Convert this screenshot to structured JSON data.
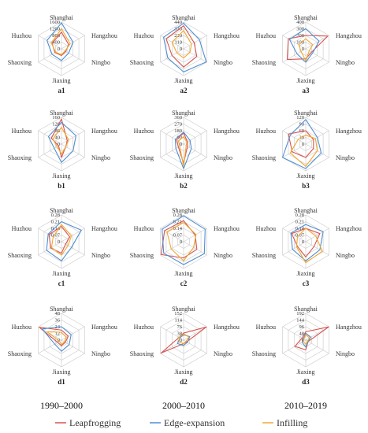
{
  "axes": [
    "Shanghai",
    "Hangzhou",
    "Ningbo",
    "Jiaxing",
    "Shaoxing",
    "Huzhou"
  ],
  "periods": [
    "1990–2000",
    "2000–2010",
    "2010–2019"
  ],
  "colors": {
    "Leapfrogging": "#d9534f",
    "Edge-expansion": "#4f8fd0",
    "Infilling": "#f0a830"
  },
  "legend": [
    {
      "name": "Leapfrogging",
      "color": "#d9534f"
    },
    {
      "name": "Edge-expansion",
      "color": "#4f8fd0"
    },
    {
      "name": "Infilling",
      "color": "#f0a830"
    }
  ],
  "chart_data": [
    {
      "type": "radar",
      "panel": "a1",
      "ticks": [
        "0",
        "400",
        "800",
        "1200",
        "1600"
      ],
      "max": 1600,
      "axes": [
        "Shanghai",
        "Hangzhou",
        "Ningbo",
        "Jiaxing",
        "Shaoxing",
        "Huzhou"
      ],
      "series": [
        {
          "name": "Leapfrogging",
          "values": [
            1000,
            500,
            300,
            400,
            450,
            650
          ]
        },
        {
          "name": "Edge-expansion",
          "values": [
            1550,
            800,
            500,
            700,
            650,
            1000
          ]
        },
        {
          "name": "Infilling",
          "values": [
            1200,
            600,
            250,
            350,
            400,
            700
          ]
        }
      ]
    },
    {
      "type": "radar",
      "panel": "a2",
      "ticks": [
        "0",
        "110",
        "220",
        "330",
        "440"
      ],
      "max": 440,
      "axes": [
        "Shanghai",
        "Hangzhou",
        "Ningbo",
        "Jiaxing",
        "Shaoxing",
        "Huzhou"
      ],
      "series": [
        {
          "name": "Leapfrogging",
          "values": [
            380,
            200,
            250,
            300,
            220,
            330
          ]
        },
        {
          "name": "Edge-expansion",
          "values": [
            420,
            300,
            430,
            380,
            300,
            380
          ]
        },
        {
          "name": "Infilling",
          "values": [
            300,
            150,
            120,
            150,
            130,
            220
          ]
        }
      ]
    },
    {
      "type": "radar",
      "panel": "a3",
      "ticks": [
        "0",
        "100",
        "200",
        "300",
        "400"
      ],
      "max": 400,
      "axes": [
        "Shanghai",
        "Hangzhou",
        "Ningbo",
        "Jiaxing",
        "Shaoxing",
        "Huzhou"
      ],
      "series": [
        {
          "name": "Leapfrogging",
          "values": [
            200,
            380,
            100,
            150,
            320,
            300
          ]
        },
        {
          "name": "Edge-expansion",
          "values": [
            300,
            230,
            120,
            200,
            150,
            280
          ]
        },
        {
          "name": "Infilling",
          "values": [
            150,
            120,
            60,
            180,
            80,
            120
          ]
        }
      ]
    },
    {
      "type": "radar",
      "panel": "b1",
      "ticks": [
        "0",
        "40",
        "80",
        "120",
        "160"
      ],
      "max": 160,
      "axes": [
        "Shanghai",
        "Hangzhou",
        "Ningbo",
        "Jiaxing",
        "Shaoxing",
        "Huzhou"
      ],
      "series": [
        {
          "name": "Leapfrogging",
          "values": [
            150,
            40,
            30,
            80,
            20,
            70
          ]
        },
        {
          "name": "Edge-expansion",
          "values": [
            130,
            100,
            80,
            110,
            50,
            90
          ]
        },
        {
          "name": "Infilling",
          "values": [
            100,
            50,
            30,
            60,
            30,
            60
          ]
        }
      ]
    },
    {
      "type": "radar",
      "panel": "b2",
      "ticks": [
        "0",
        "90",
        "180",
        "270",
        "360"
      ],
      "max": 360,
      "axes": [
        "Shanghai",
        "Hangzhou",
        "Ningbo",
        "Jiaxing",
        "Shaoxing",
        "Huzhou"
      ],
      "series": [
        {
          "name": "Leapfrogging",
          "values": [
            150,
            60,
            60,
            260,
            80,
            110
          ]
        },
        {
          "name": "Edge-expansion",
          "values": [
            160,
            100,
            120,
            330,
            120,
            130
          ]
        },
        {
          "name": "Infilling",
          "values": [
            100,
            50,
            40,
            300,
            60,
            80
          ]
        }
      ]
    },
    {
      "type": "radar",
      "panel": "b3",
      "ticks": [
        "0",
        "30",
        "60",
        "90",
        "120"
      ],
      "max": 120,
      "axes": [
        "Shanghai",
        "Hangzhou",
        "Ningbo",
        "Jiaxing",
        "Shaoxing",
        "Huzhou"
      ],
      "series": [
        {
          "name": "Leapfrogging",
          "values": [
            60,
            40,
            40,
            60,
            70,
            90
          ]
        },
        {
          "name": "Edge-expansion",
          "values": [
            110,
            60,
            80,
            110,
            120,
            80
          ]
        },
        {
          "name": "Infilling",
          "values": [
            40,
            50,
            60,
            100,
            80,
            40
          ]
        }
      ]
    },
    {
      "type": "radar",
      "panel": "c1",
      "ticks": [
        "0",
        "0.07",
        "0.14",
        "0.21",
        "0.28"
      ],
      "max": 0.28,
      "axes": [
        "Shanghai",
        "Hangzhou",
        "Ningbo",
        "Jiaxing",
        "Shaoxing",
        "Huzhou"
      ],
      "series": [
        {
          "name": "Leapfrogging",
          "values": [
            0.16,
            0.1,
            0.05,
            0.12,
            0.13,
            0.15
          ]
        },
        {
          "name": "Edge-expansion",
          "values": [
            0.21,
            0.24,
            0.12,
            0.2,
            0.18,
            0.16
          ]
        },
        {
          "name": "Infilling",
          "values": [
            0.18,
            0.12,
            0.08,
            0.14,
            0.12,
            0.1
          ]
        }
      ]
    },
    {
      "type": "radar",
      "panel": "c2",
      "ticks": [
        "0",
        "0.07",
        "0.14",
        "0.21",
        "0.28"
      ],
      "max": 0.28,
      "axes": [
        "Shanghai",
        "Hangzhou",
        "Ningbo",
        "Jiaxing",
        "Shaoxing",
        "Huzhou"
      ],
      "series": [
        {
          "name": "Leapfrogging",
          "values": [
            0.22,
            0.14,
            0.16,
            0.17,
            0.27,
            0.23
          ]
        },
        {
          "name": "Edge-expansion",
          "values": [
            0.27,
            0.26,
            0.25,
            0.24,
            0.24,
            0.26
          ]
        },
        {
          "name": "Infilling",
          "values": [
            0.2,
            0.15,
            0.12,
            0.2,
            0.15,
            0.2
          ]
        }
      ]
    },
    {
      "type": "radar",
      "panel": "c3",
      "ticks": [
        "0",
        "0.07",
        "0.14",
        "0.21",
        "0.28"
      ],
      "max": 0.28,
      "axes": [
        "Shanghai",
        "Hangzhou",
        "Ningbo",
        "Jiaxing",
        "Shaoxing",
        "Huzhou"
      ],
      "series": [
        {
          "name": "Leapfrogging",
          "values": [
            0.14,
            0.17,
            0.1,
            0.16,
            0.1,
            0.17
          ]
        },
        {
          "name": "Edge-expansion",
          "values": [
            0.18,
            0.21,
            0.17,
            0.2,
            0.16,
            0.18
          ]
        },
        {
          "name": "Infilling",
          "values": [
            0.14,
            0.12,
            0.2,
            0.22,
            0.11,
            0.1
          ]
        }
      ]
    },
    {
      "type": "radar",
      "panel": "d1",
      "ticks": [
        "0",
        "12",
        "24",
        "36",
        "48"
      ],
      "max": 48,
      "axes": [
        "Shanghai",
        "Hangzhou",
        "Ningbo",
        "Jiaxing",
        "Shaoxing",
        "Huzhou"
      ],
      "series": [
        {
          "name": "Leapfrogging",
          "values": [
            18,
            14,
            8,
            10,
            8,
            46
          ]
        },
        {
          "name": "Edge-expansion",
          "values": [
            24,
            20,
            16,
            20,
            14,
            40
          ]
        },
        {
          "name": "Infilling",
          "values": [
            14,
            10,
            6,
            8,
            4,
            30
          ]
        }
      ]
    },
    {
      "type": "radar",
      "panel": "d2",
      "ticks": [
        "0",
        "38",
        "76",
        "114",
        "152"
      ],
      "max": 152,
      "axes": [
        "Shanghai",
        "Hangzhou",
        "Ningbo",
        "Jiaxing",
        "Shaoxing",
        "Huzhou"
      ],
      "series": [
        {
          "name": "Leapfrogging",
          "values": [
            40,
            148,
            20,
            20,
            148,
            30
          ]
        },
        {
          "name": "Edge-expansion",
          "values": [
            30,
            40,
            25,
            30,
            40,
            25
          ]
        },
        {
          "name": "Infilling",
          "values": [
            35,
            35,
            15,
            20,
            25,
            30
          ]
        }
      ]
    },
    {
      "type": "radar",
      "panel": "d3",
      "ticks": [
        "0",
        "48",
        "96",
        "144",
        "192"
      ],
      "max": 192,
      "axes": [
        "Shanghai",
        "Hangzhou",
        "Ningbo",
        "Jiaxing",
        "Shaoxing",
        "Huzhou"
      ],
      "series": [
        {
          "name": "Leapfrogging",
          "values": [
            60,
            190,
            20,
            70,
            90,
            30
          ]
        },
        {
          "name": "Edge-expansion",
          "values": [
            50,
            40,
            20,
            50,
            30,
            20
          ]
        },
        {
          "name": "Infilling",
          "values": [
            40,
            30,
            15,
            30,
            20,
            15
          ]
        }
      ]
    }
  ]
}
